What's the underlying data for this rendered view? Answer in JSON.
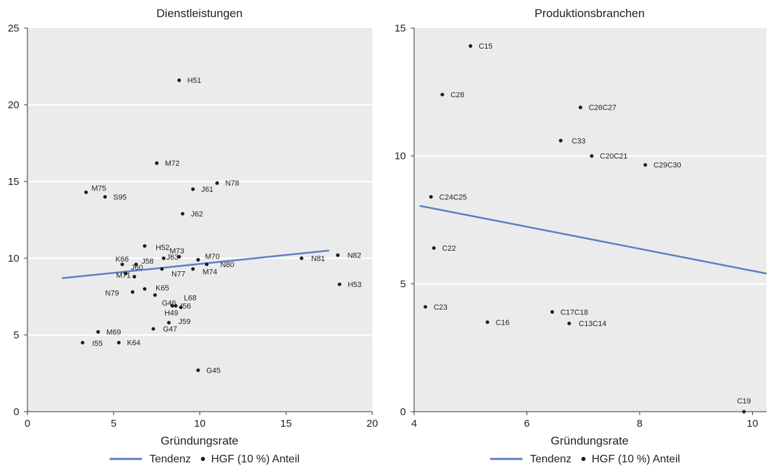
{
  "chart_data": [
    {
      "type": "scatter",
      "title": "Dienstleistungen",
      "xlabel": "Gründungsrate",
      "ylabel": "",
      "xlim": [
        0,
        20
      ],
      "ylim": [
        0,
        25
      ],
      "xticks": [
        "0",
        "5",
        "10",
        "15",
        "20"
      ],
      "yticks": [
        "0",
        "5",
        "10",
        "15",
        "20",
        "25"
      ],
      "grid": "horizontal",
      "background": "#ebebeb",
      "points_color": "#1a1a1a",
      "trend_color": "#5b7ec4",
      "points": [
        {
          "label": "H51",
          "x": 8.8,
          "y": 21.6
        },
        {
          "label": "M72",
          "x": 7.5,
          "y": 16.2
        },
        {
          "label": "N78",
          "x": 11.0,
          "y": 14.9
        },
        {
          "label": "J61",
          "x": 9.6,
          "y": 14.5
        },
        {
          "label": "M75",
          "x": 3.4,
          "y": 14.3
        },
        {
          "label": "S95",
          "x": 4.5,
          "y": 14.0
        },
        {
          "label": "J62",
          "x": 9.0,
          "y": 12.9
        },
        {
          "label": "H52",
          "x": 6.8,
          "y": 10.8
        },
        {
          "label": "M73",
          "x": 8.8,
          "y": 10.1
        },
        {
          "label": "N82",
          "x": 18.0,
          "y": 10.2
        },
        {
          "label": "N81",
          "x": 15.9,
          "y": 10.0
        },
        {
          "label": "K66",
          "x": 5.5,
          "y": 9.6
        },
        {
          "label": "J58",
          "x": 6.3,
          "y": 9.6
        },
        {
          "label": "J63",
          "x": 7.9,
          "y": 10.0
        },
        {
          "label": "M70",
          "x": 9.9,
          "y": 9.9
        },
        {
          "label": "N80",
          "x": 10.4,
          "y": 9.6
        },
        {
          "label": "M74",
          "x": 9.6,
          "y": 9.3
        },
        {
          "label": "N77",
          "x": 7.8,
          "y": 9.3
        },
        {
          "label": "M71",
          "x": 5.7,
          "y": 9.0
        },
        {
          "label": "J60",
          "x": 6.2,
          "y": 8.8
        },
        {
          "label": "H53",
          "x": 18.1,
          "y": 8.3
        },
        {
          "label": "K65",
          "x": 6.8,
          "y": 8.0
        },
        {
          "label": "N79",
          "x": 6.1,
          "y": 7.8
        },
        {
          "label": "G46",
          "x": 7.4,
          "y": 7.6
        },
        {
          "label": "L68",
          "x": 8.6,
          "y": 6.9
        },
        {
          "label": "I56",
          "x": 8.4,
          "y": 6.9
        },
        {
          "label": "H49",
          "x": 8.9,
          "y": 6.8
        },
        {
          "label": "J59",
          "x": 8.2,
          "y": 5.8
        },
        {
          "label": "G47",
          "x": 7.3,
          "y": 5.4
        },
        {
          "label": "M69",
          "x": 4.1,
          "y": 5.2
        },
        {
          "label": "I55",
          "x": 3.2,
          "y": 4.5
        },
        {
          "label": "K64",
          "x": 5.3,
          "y": 4.5
        },
        {
          "label": "G45",
          "x": 9.9,
          "y": 2.7
        }
      ],
      "trend": {
        "x": [
          2.0,
          17.5
        ],
        "y": [
          8.7,
          10.5
        ]
      },
      "legend": [
        "Tendenz",
        "HGF (10 %) Anteil"
      ],
      "legend_position": "bottom"
    },
    {
      "type": "scatter",
      "title": "Produktionsbranchen",
      "xlabel": "Gründungsrate",
      "ylabel": "",
      "xlim": [
        4,
        10.25
      ],
      "ylim": [
        0,
        15
      ],
      "xticks": [
        "4",
        "6",
        "8",
        "10"
      ],
      "yticks": [
        "0",
        "5",
        "10",
        "15"
      ],
      "grid": "horizontal",
      "background": "#ebebeb",
      "points_color": "#1a1a1a",
      "trend_color": "#5b7ec4",
      "points": [
        {
          "label": "C15",
          "x": 5.0,
          "y": 14.3
        },
        {
          "label": "C28",
          "x": 4.5,
          "y": 12.4
        },
        {
          "label": "C26C27",
          "x": 6.95,
          "y": 11.9
        },
        {
          "label": "C33",
          "x": 6.6,
          "y": 10.6
        },
        {
          "label": "C20C21",
          "x": 7.15,
          "y": 10.0
        },
        {
          "label": "C29C30",
          "x": 8.1,
          "y": 9.65
        },
        {
          "label": "C24C25",
          "x": 4.3,
          "y": 8.4
        },
        {
          "label": "C22",
          "x": 4.35,
          "y": 6.4
        },
        {
          "label": "C23",
          "x": 4.2,
          "y": 4.1
        },
        {
          "label": "C17C18",
          "x": 6.45,
          "y": 3.9
        },
        {
          "label": "C16",
          "x": 5.3,
          "y": 3.5
        },
        {
          "label": "C13C14",
          "x": 6.75,
          "y": 3.45
        },
        {
          "label": "C19",
          "x": 9.85,
          "y": 0.0
        }
      ],
      "trend": {
        "x": [
          4.1,
          10.25
        ],
        "y": [
          8.05,
          5.4
        ]
      },
      "legend": [
        "Tendenz",
        "HGF (10 %) Anteil"
      ],
      "legend_position": "bottom"
    }
  ]
}
